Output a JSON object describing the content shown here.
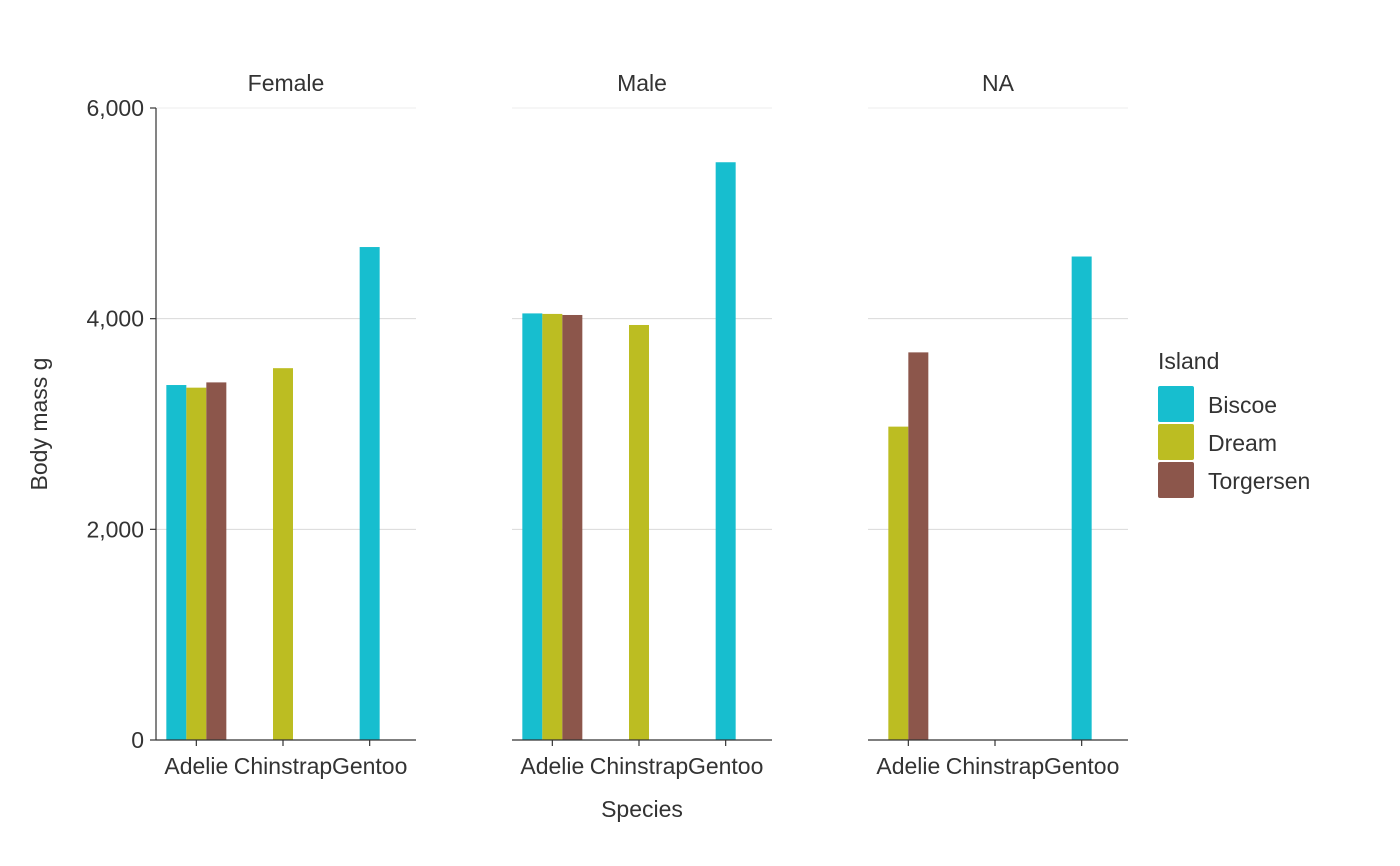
{
  "chart_data": {
    "type": "bar",
    "title": "",
    "xlabel": "Species",
    "ylabel": "Body mass g",
    "ylim": [
      0,
      6000
    ],
    "yticks": [
      0,
      2000,
      4000,
      6000
    ],
    "ytick_labels": [
      "0",
      "2,000",
      "4,000",
      "6,000"
    ],
    "grid": {
      "horizontal": true,
      "vertical": false
    },
    "legend": {
      "title": "Island",
      "position": "right",
      "entries": [
        "Biscoe",
        "Dream",
        "Torgersen"
      ]
    },
    "colors": {
      "Biscoe": "#17BECF",
      "Dream": "#BCBD22",
      "Torgersen": "#8C564B"
    },
    "categories": [
      "Adelie",
      "Chinstrap",
      "Gentoo"
    ],
    "facets": [
      {
        "label": "Female",
        "series": [
          {
            "name": "Biscoe",
            "values": [
              3370,
              null,
              4680
            ]
          },
          {
            "name": "Dream",
            "values": [
              3345,
              3530,
              null
            ]
          },
          {
            "name": "Torgersen",
            "values": [
              3395,
              null,
              null
            ]
          }
        ]
      },
      {
        "label": "Male",
        "series": [
          {
            "name": "Biscoe",
            "values": [
              4050,
              null,
              5485
            ]
          },
          {
            "name": "Dream",
            "values": [
              4045,
              3940,
              null
            ]
          },
          {
            "name": "Torgersen",
            "values": [
              4035,
              null,
              null
            ]
          }
        ]
      },
      {
        "label": "NA",
        "series": [
          {
            "name": "Biscoe",
            "values": [
              null,
              null,
              4590
            ]
          },
          {
            "name": "Dream",
            "values": [
              2975,
              null,
              null
            ]
          },
          {
            "name": "Torgersen",
            "values": [
              3680,
              null,
              null
            ]
          }
        ]
      }
    ]
  }
}
